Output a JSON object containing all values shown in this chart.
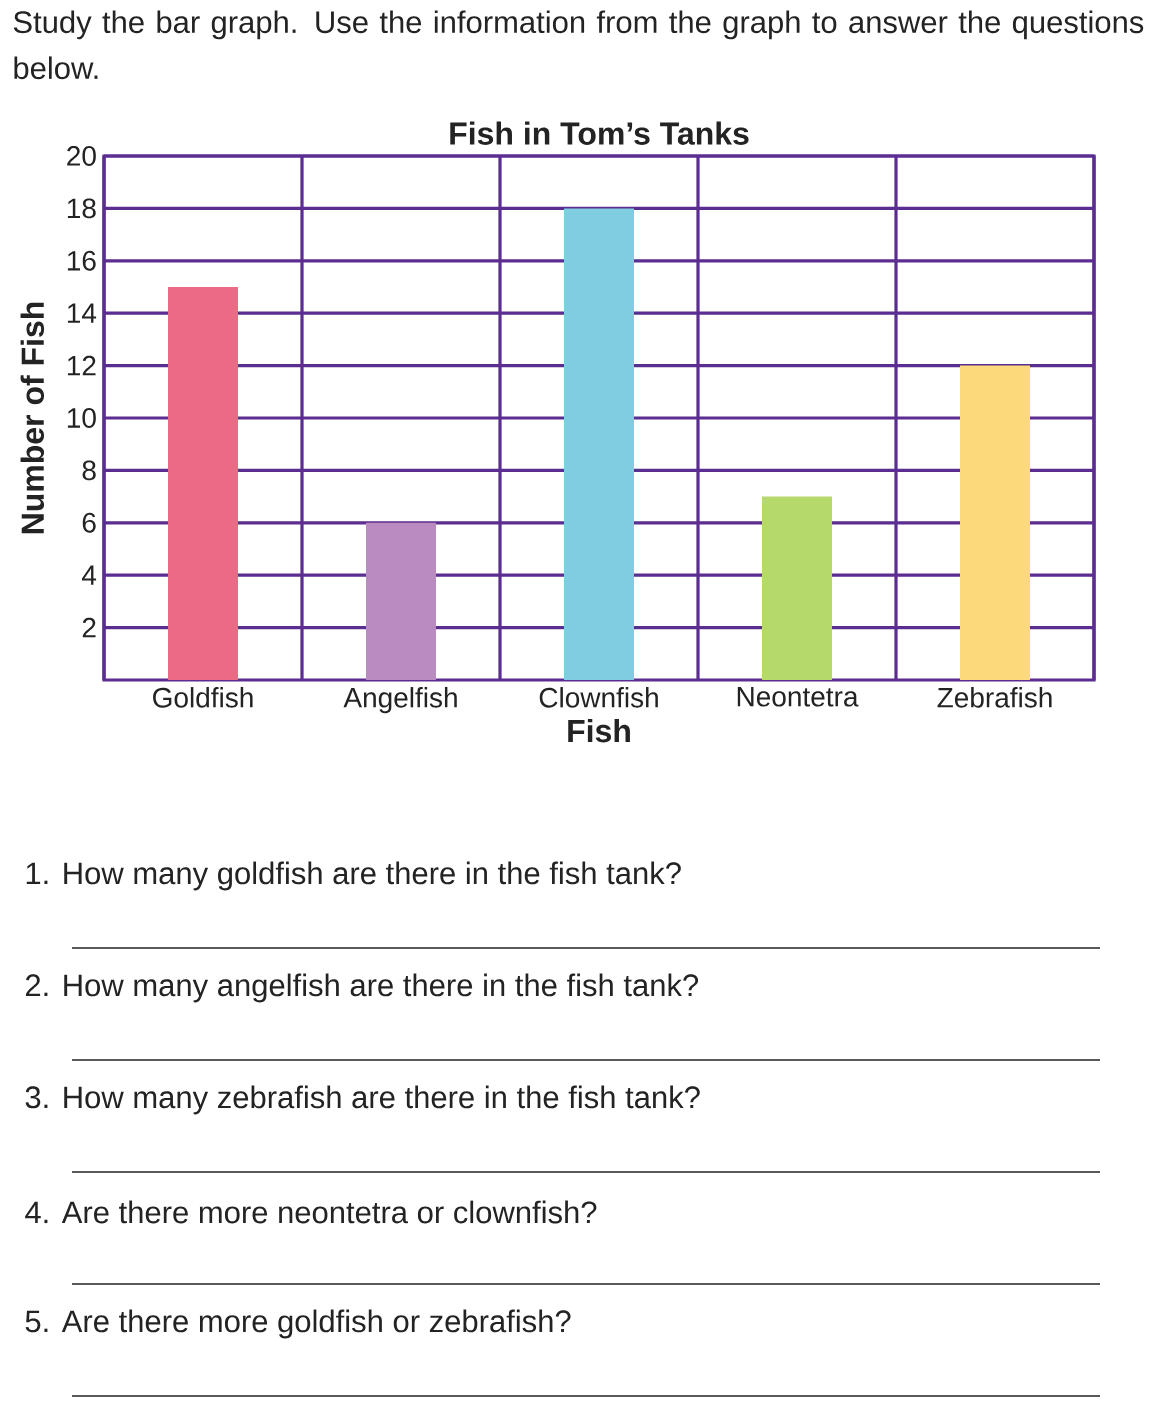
{
  "chart_data": {
    "type": "bar",
    "title": "Fish in Tom’s Tanks",
    "xlabel": "Fish",
    "ylabel": "Number of Fish",
    "categories": [
      "Goldfish",
      "Angelfish",
      "Clownfish",
      "Neontetra",
      "Zebrafish"
    ],
    "values": [
      15,
      6,
      18,
      7,
      12
    ],
    "colors": [
      "#ec6a85",
      "#b98bc0",
      "#7ecde0",
      "#b5d96a",
      "#fcd97a"
    ],
    "ylim": [
      0,
      20
    ],
    "yticks": [
      2,
      4,
      6,
      8,
      10,
      12,
      14,
      16,
      18,
      20
    ],
    "grid": true,
    "annotations": [
      "Study the bar graph. Use the information from the graph to answer the questions below.",
      "1. How many goldfish are there in the fish tank?",
      "2. How many angelfish are there in the fish tank?",
      "3. How many zebrafish are there in the fish tank?",
      "4. Are there more neontetra or clownfish?",
      "5. Are there more goldfish or zebrafish?"
    ]
  }
}
